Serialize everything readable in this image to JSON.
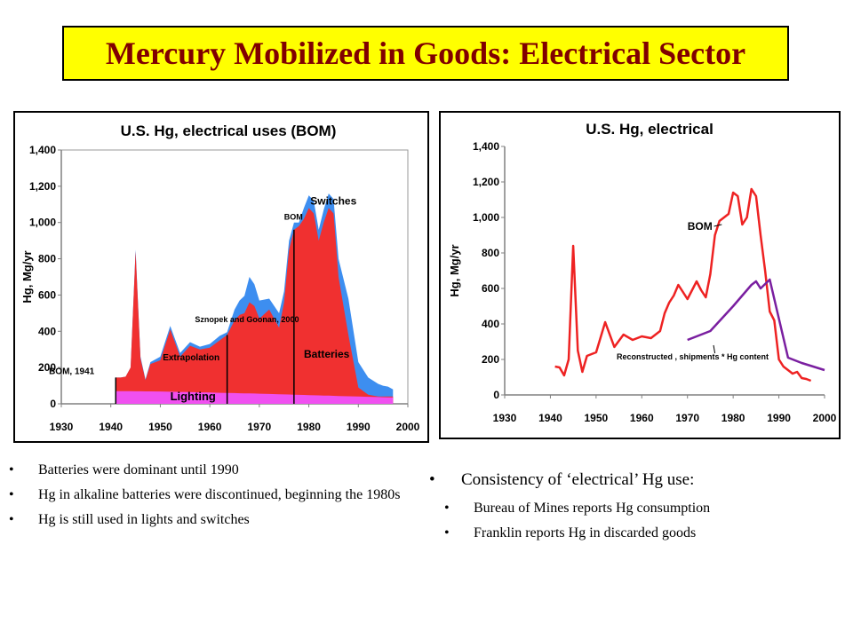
{
  "slide": {
    "title": "Mercury Mobilized in Goods: Electrical Sector"
  },
  "chart_data": [
    {
      "type": "area",
      "title": "U.S. Hg, electrical uses (BOM)",
      "xlabel": "",
      "ylabel": "Hg, Mg/yr",
      "xlim": [
        1930,
        2000
      ],
      "ylim": [
        0,
        1400
      ],
      "xticks": [
        "1930",
        "1940",
        "1950",
        "1960",
        "1970",
        "1980",
        "1990",
        "2000"
      ],
      "yticks": [
        "0",
        "200",
        "400",
        "600",
        "800",
        "1,000",
        "1,200",
        "1,400"
      ],
      "annotations": [
        "BOM, 1941",
        "Extrapolation",
        "Sznopek and Goonan, 2000",
        "BOM",
        "Switches",
        "Batteries",
        "Lighting"
      ],
      "colors": {
        "switches": "#3d8ef0",
        "batteries": "#f03030",
        "lighting": "#f050f0",
        "divider": "#000000"
      },
      "dividers_x": [
        1941,
        1963.5,
        1977
      ],
      "series": [
        {
          "name": "Switches",
          "x": [
            1941,
            1942,
            1943,
            1944,
            1945,
            1946,
            1947,
            1948,
            1950,
            1952,
            1954,
            1956,
            1958,
            1960,
            1962,
            1963.5,
            1965,
            1966,
            1967,
            1968,
            1969,
            1970,
            1972,
            1974,
            1975,
            1976,
            1977,
            1978,
            1979,
            1980,
            1981,
            1982,
            1983,
            1984,
            1985,
            1986,
            1988,
            1990,
            1992,
            1994,
            1995,
            1996,
            1997
          ],
          "values": [
            145,
            145,
            150,
            200,
            850,
            260,
            135,
            230,
            260,
            430,
            280,
            340,
            315,
            330,
            375,
            395,
            520,
            570,
            595,
            700,
            660,
            570,
            580,
            500,
            620,
            900,
            1000,
            1000,
            1080,
            1150,
            1120,
            960,
            1070,
            1160,
            1130,
            800,
            580,
            230,
            145,
            110,
            100,
            95,
            80
          ]
        },
        {
          "name": "Batteries",
          "x": [
            1941,
            1942,
            1943,
            1944,
            1945,
            1946,
            1947,
            1948,
            1950,
            1952,
            1954,
            1956,
            1958,
            1960,
            1962,
            1963.5,
            1965,
            1966,
            1967,
            1968,
            1969,
            1970,
            1972,
            1974,
            1975,
            1976,
            1977,
            1978,
            1979,
            1980,
            1981,
            1982,
            1983,
            1984,
            1985,
            1986,
            1988,
            1990,
            1992,
            1994,
            1995,
            1996,
            1997
          ],
          "values": [
            145,
            145,
            150,
            200,
            840,
            250,
            130,
            220,
            240,
            410,
            260,
            320,
            300,
            310,
            350,
            380,
            460,
            490,
            500,
            560,
            540,
            470,
            520,
            420,
            560,
            850,
            960,
            980,
            1020,
            1080,
            1050,
            900,
            1000,
            1080,
            1050,
            700,
            380,
            90,
            50,
            40,
            40,
            40,
            40
          ]
        },
        {
          "name": "Lighting",
          "x": [
            1941,
            1950,
            1960,
            1970,
            1980,
            1990,
            1997
          ],
          "values": [
            70,
            68,
            62,
            56,
            48,
            40,
            35
          ]
        }
      ]
    },
    {
      "type": "line",
      "title": "U.S. Hg, electrical",
      "xlabel": "",
      "ylabel": "Hg, Mg/yr",
      "xlim": [
        1930,
        2000
      ],
      "ylim": [
        0,
        1400
      ],
      "xticks": [
        "1930",
        "1940",
        "1950",
        "1960",
        "1970",
        "1980",
        "1990",
        "2000"
      ],
      "yticks": [
        "0",
        "200",
        "400",
        "600",
        "800",
        "1,000",
        "1,200",
        "1,400"
      ],
      "annotations": [
        "BOM",
        "Reconstructed , shipments * Hg content"
      ],
      "colors": {
        "bom": "#ee2222",
        "reconstructed": "#7a1fa0"
      },
      "series": [
        {
          "name": "BOM",
          "x": [
            1941,
            1942,
            1943,
            1944,
            1945,
            1946,
            1947,
            1948,
            1950,
            1952,
            1954,
            1956,
            1958,
            1960,
            1962,
            1964,
            1965,
            1966,
            1967,
            1968,
            1969,
            1970,
            1972,
            1973,
            1974,
            1975,
            1976,
            1977,
            1978,
            1979,
            1980,
            1981,
            1982,
            1983,
            1984,
            1985,
            1986,
            1987,
            1988,
            1989,
            1990,
            1991,
            1992,
            1993,
            1994,
            1995,
            1996,
            1997
          ],
          "values": [
            160,
            155,
            110,
            200,
            840,
            250,
            130,
            220,
            240,
            410,
            270,
            340,
            310,
            330,
            320,
            360,
            460,
            520,
            560,
            620,
            580,
            540,
            640,
            590,
            550,
            680,
            900,
            980,
            1000,
            1020,
            1140,
            1120,
            960,
            1000,
            1160,
            1120,
            900,
            700,
            470,
            420,
            200,
            160,
            140,
            120,
            130,
            95,
            90,
            80
          ]
        },
        {
          "name": "Reconstructed , shipments * Hg content",
          "x": [
            1970,
            1975,
            1980,
            1984,
            1985,
            1986,
            1988,
            1990,
            1992,
            1995,
            2000
          ],
          "values": [
            310,
            360,
            500,
            620,
            640,
            600,
            650,
            430,
            210,
            180,
            140
          ]
        }
      ]
    }
  ],
  "bullets_left": [
    "Batteries were dominant until 1990",
    "Hg in alkaline batteries were discontinued, beginning the 1980s",
    "Hg is still used in lights and switches"
  ],
  "bullets_right": {
    "main": "Consistency of ‘electrical’ Hg use:",
    "subs": [
      "Bureau of Mines reports Hg consumption",
      "Franklin reports Hg in discarded goods"
    ]
  }
}
